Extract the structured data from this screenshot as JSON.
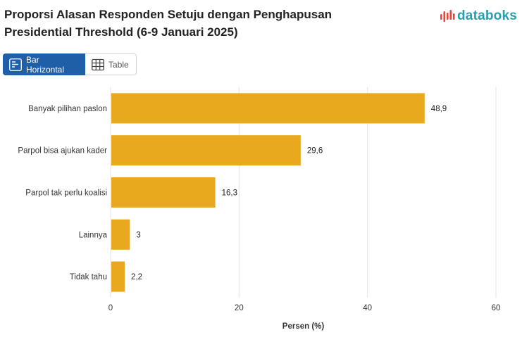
{
  "header": {
    "title": "Proporsi Alasan Responden Setuju dengan Penghapusan Presidential Threshold (6-9 Januari 2025)",
    "brand": "databoks"
  },
  "view_toggle": {
    "bar_label": "Bar Horizontal",
    "table_label": "Table",
    "active": "bar"
  },
  "colors": {
    "bar": "#E8A91E",
    "brand": "#2A9DB1",
    "logo_accent": "#E8453C",
    "active_button": "#1F5FA8",
    "grid": "#E3E3E3"
  },
  "chart_data": {
    "type": "bar",
    "orientation": "horizontal",
    "title": "Proporsi Alasan Responden Setuju dengan Penghapusan Presidential Threshold (6-9 Januari 2025)",
    "categories": [
      "Banyak pilihan paslon",
      "Parpol bisa ajukan kader",
      "Parpol tak perlu koalisi",
      "Lainnya",
      "Tidak tahu"
    ],
    "values": [
      48.9,
      29.6,
      16.3,
      3,
      2.2
    ],
    "value_labels": [
      "48,9",
      "29,6",
      "16,3",
      "3",
      "2,2"
    ],
    "xlabel": "Persen (%)",
    "ylabel": "",
    "xlim": [
      0,
      60
    ],
    "xticks": [
      0,
      20,
      40,
      60
    ],
    "xtick_labels": [
      "0",
      "20",
      "40",
      "60"
    ],
    "grid": true,
    "legend": "none"
  }
}
